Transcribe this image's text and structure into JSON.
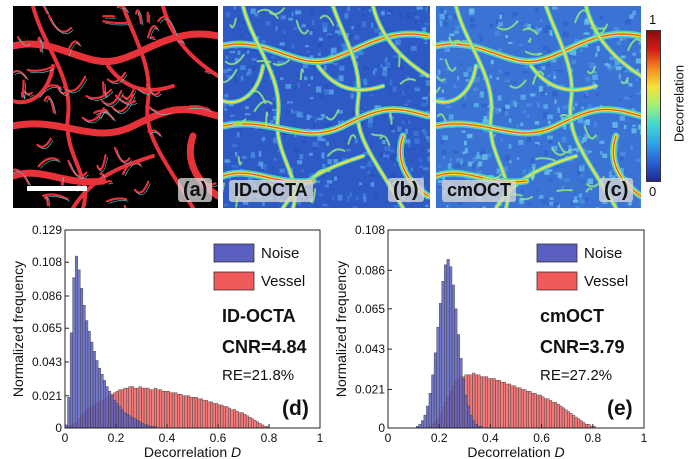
{
  "panels": [
    {
      "label": "(a)",
      "method": ""
    },
    {
      "label": "(b)",
      "method": "ID-OCTA"
    },
    {
      "label": "(c)",
      "method": "cmOCT"
    }
  ],
  "colorbar": {
    "max": "1",
    "min": "0",
    "title": "Decorrelation",
    "colors": [
      "#1e2a8f",
      "#2a5fd6",
      "#2fa4e8",
      "#41d7d0",
      "#9ff07a",
      "#f7e33a",
      "#f58a1e",
      "#d41c14",
      "#8f0b0b"
    ]
  },
  "colors": {
    "noise": "#5a5fc0",
    "vessel": "#f05a5a",
    "vessel_mask": "#e8323a",
    "outline": "#58d3e0"
  },
  "chart_data": [
    {
      "type": "bar",
      "xlabel": "Decorrelation D",
      "ylabel": "Normalized frequency",
      "xlim": [
        0,
        1
      ],
      "ylim": [
        0,
        0.129
      ],
      "yticks": [
        "0",
        "0.021",
        "0.043",
        "0.065",
        "0.086",
        "0.108",
        "0.129"
      ],
      "ytick_values": [
        0,
        0.021,
        0.043,
        0.065,
        0.086,
        0.108,
        0.129
      ],
      "xticks": [
        "0",
        "0.2",
        "0.4",
        "0.6",
        "0.8",
        "1"
      ],
      "legend": [
        "Noise",
        "Vessel"
      ],
      "legend_position": "top-right",
      "annotations": [
        "ID-OCTA",
        "CNR=4.84",
        "RE=21.8%"
      ],
      "panel_label": "(d)",
      "bin_width": 0.01,
      "series": [
        {
          "name": "Noise",
          "x_start": 0.0,
          "values": [
            0.002,
            0.02,
            0.062,
            0.098,
            0.112,
            0.103,
            0.091,
            0.08,
            0.07,
            0.063,
            0.056,
            0.05,
            0.044,
            0.039,
            0.035,
            0.031,
            0.027,
            0.024,
            0.021,
            0.018,
            0.016,
            0.014,
            0.012,
            0.01,
            0.009,
            0.008,
            0.007,
            0.006,
            0.005,
            0.004,
            0.003,
            0.002,
            0.002,
            0.001,
            0.001,
            0.001
          ]
        },
        {
          "name": "Vessel",
          "x_start": 0.0,
          "values": [
            0.0,
            0.001,
            0.002,
            0.003,
            0.004,
            0.006,
            0.008,
            0.01,
            0.012,
            0.013,
            0.014,
            0.015,
            0.016,
            0.017,
            0.018,
            0.019,
            0.02,
            0.021,
            0.022,
            0.023,
            0.024,
            0.025,
            0.025,
            0.026,
            0.026,
            0.027,
            0.027,
            0.026,
            0.026,
            0.027,
            0.026,
            0.026,
            0.026,
            0.025,
            0.025,
            0.026,
            0.025,
            0.025,
            0.024,
            0.024,
            0.024,
            0.023,
            0.023,
            0.023,
            0.022,
            0.022,
            0.021,
            0.021,
            0.021,
            0.02,
            0.02,
            0.02,
            0.019,
            0.019,
            0.018,
            0.018,
            0.017,
            0.017,
            0.016,
            0.016,
            0.015,
            0.015,
            0.014,
            0.014,
            0.013,
            0.012,
            0.012,
            0.011,
            0.01,
            0.01,
            0.009,
            0.008,
            0.007,
            0.006,
            0.005,
            0.004,
            0.003,
            0.002,
            0.001,
            0.001
          ]
        }
      ]
    },
    {
      "type": "bar",
      "xlabel": "Decorrelation D",
      "ylabel": "Normalized frequency",
      "xlim": [
        0,
        1
      ],
      "ylim": [
        0,
        0.108
      ],
      "yticks": [
        "0",
        "0.021",
        "0.043",
        "0.065",
        "0.086",
        "0.108"
      ],
      "ytick_values": [
        0,
        0.021,
        0.043,
        0.065,
        0.086,
        0.108
      ],
      "xticks": [
        "0",
        "0.2",
        "0.4",
        "0.6",
        "0.8",
        "1"
      ],
      "legend": [
        "Noise",
        "Vessel"
      ],
      "legend_position": "top-right",
      "annotations": [
        "cmOCT",
        "CNR=3.79",
        "RE=27.2%"
      ],
      "panel_label": "(e)",
      "bin_width": 0.01,
      "series": [
        {
          "name": "Noise",
          "x_start": 0.1,
          "values": [
            0.0,
            0.001,
            0.002,
            0.004,
            0.007,
            0.012,
            0.019,
            0.029,
            0.041,
            0.055,
            0.068,
            0.08,
            0.089,
            0.092,
            0.088,
            0.078,
            0.065,
            0.051,
            0.038,
            0.027,
            0.018,
            0.012,
            0.007,
            0.004,
            0.002,
            0.001,
            0.001
          ]
        },
        {
          "name": "Vessel",
          "x_start": 0.15,
          "values": [
            0.0,
            0.001,
            0.002,
            0.003,
            0.005,
            0.008,
            0.011,
            0.014,
            0.017,
            0.02,
            0.023,
            0.025,
            0.027,
            0.028,
            0.028,
            0.029,
            0.029,
            0.029,
            0.03,
            0.029,
            0.029,
            0.028,
            0.028,
            0.028,
            0.027,
            0.027,
            0.027,
            0.026,
            0.026,
            0.025,
            0.025,
            0.024,
            0.024,
            0.023,
            0.023,
            0.022,
            0.022,
            0.021,
            0.021,
            0.02,
            0.02,
            0.019,
            0.019,
            0.018,
            0.018,
            0.017,
            0.016,
            0.016,
            0.015,
            0.014,
            0.014,
            0.013,
            0.012,
            0.011,
            0.01,
            0.009,
            0.008,
            0.007,
            0.006,
            0.005,
            0.004,
            0.003,
            0.002,
            0.002,
            0.001,
            0.001
          ]
        }
      ]
    }
  ]
}
